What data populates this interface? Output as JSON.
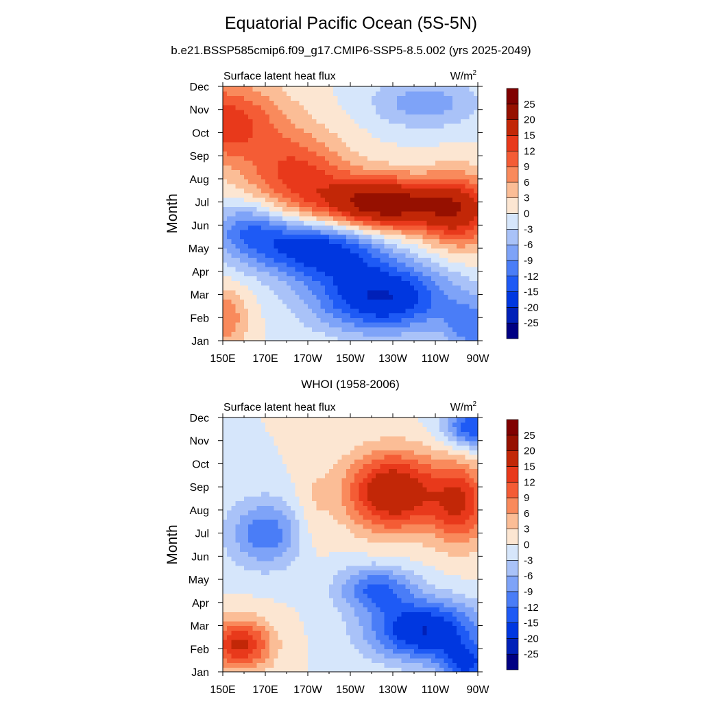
{
  "header": {
    "title": "Equatorial Pacific Ocean (5S-5N)",
    "subtitle": "b.e21.BSSP585cmip6.f09_g17.CMIP6-SSP5-8.5.002 (yrs 2025-2049)"
  },
  "palette": {
    "levels": [
      "-25",
      "-20",
      "-15",
      "-12",
      "-9",
      "-6",
      "-3",
      "0",
      "3",
      "6",
      "9",
      "12",
      "15",
      "20",
      "25"
    ],
    "level_values": [
      -25,
      -20,
      -15,
      -12,
      -9,
      -6,
      -3,
      0,
      3,
      6,
      9,
      12,
      15,
      20,
      25
    ],
    "colors": [
      "#000083",
      "#0020b8",
      "#0037e0",
      "#1e5af5",
      "#4a7df7",
      "#7ea3f8",
      "#a9c2f8",
      "#d6e6fb",
      "#fce6d2",
      "#fbbd96",
      "#f98a5c",
      "#f45c35",
      "#e8391b",
      "#c22707",
      "#961000",
      "#800000"
    ]
  },
  "chart_data": [
    {
      "type": "heatmap",
      "panel_title": "",
      "left_label": "Surface latent heat flux",
      "right_label": "W/m",
      "right_label_sup": "2",
      "ylabel": "Month",
      "x_ticks": [
        "150E",
        "170E",
        "170W",
        "150W",
        "130W",
        "110W",
        "90W"
      ],
      "x_tick_values": [
        150,
        170,
        190,
        210,
        230,
        250,
        270
      ],
      "y_ticks": [
        "Jan",
        "Feb",
        "Mar",
        "Apr",
        "May",
        "Jun",
        "Jul",
        "Aug",
        "Sep",
        "Oct",
        "Nov",
        "Dec"
      ],
      "xlim": [
        150,
        270
      ],
      "ylim": [
        1,
        12
      ],
      "features": [
        {
          "kind": "pos",
          "lon": 150,
          "month": 10.5,
          "amp": 14,
          "slon": 28,
          "smon": 1.8
        },
        {
          "kind": "pos",
          "lon": 185,
          "month": 8.2,
          "amp": 12,
          "slon": 24,
          "smon": 1.8
        },
        {
          "kind": "pos",
          "lon": 225,
          "month": 6.9,
          "amp": 24,
          "slon": 30,
          "smon": 1.2
        },
        {
          "kind": "pos",
          "lon": 262,
          "month": 6.6,
          "amp": 15,
          "slon": 18,
          "smon": 1.6
        },
        {
          "kind": "pos",
          "lon": 150,
          "month": 2,
          "amp": 9,
          "slon": 12,
          "smon": 1.3
        },
        {
          "kind": "neg",
          "lon": 195,
          "month": 5,
          "amp": -18,
          "slon": 30,
          "smon": 1.3
        },
        {
          "kind": "neg",
          "lon": 225,
          "month": 2.9,
          "amp": -20,
          "slon": 32,
          "smon": 1.5
        },
        {
          "kind": "neg",
          "lon": 162,
          "month": 5.8,
          "amp": -10,
          "slon": 18,
          "smon": 1.2
        },
        {
          "kind": "neg",
          "lon": 245,
          "month": 11.3,
          "amp": -8,
          "slon": 25,
          "smon": 1.1
        },
        {
          "kind": "neg",
          "lon": 268,
          "month": 1.6,
          "amp": -10,
          "slon": 14,
          "smon": 1.2
        }
      ]
    },
    {
      "type": "heatmap",
      "panel_title": "WHOI (1958-2006)",
      "left_label": "Surface latent heat flux",
      "right_label": "W/m",
      "right_label_sup": "2",
      "ylabel": "Month",
      "x_ticks": [
        "150E",
        "170E",
        "170W",
        "150W",
        "130W",
        "110W",
        "90W"
      ],
      "x_tick_values": [
        150,
        170,
        190,
        210,
        230,
        250,
        270
      ],
      "y_ticks": [
        "Jan",
        "Feb",
        "Mar",
        "Apr",
        "May",
        "Jun",
        "Jul",
        "Aug",
        "Sep",
        "Oct",
        "Nov",
        "Dec"
      ],
      "xlim": [
        150,
        270
      ],
      "ylim": [
        1,
        12
      ],
      "features": [
        {
          "kind": "pos",
          "lon": 230,
          "month": 8.8,
          "amp": 20,
          "slon": 22,
          "smon": 1.7
        },
        {
          "kind": "pos",
          "lon": 262,
          "month": 8.3,
          "amp": 14,
          "slon": 14,
          "smon": 1.8
        },
        {
          "kind": "pos",
          "lon": 158,
          "month": 2.2,
          "amp": 16,
          "slon": 15,
          "smon": 1.1
        },
        {
          "kind": "pos",
          "lon": 192,
          "month": 8,
          "amp": 3,
          "slon": 8,
          "smon": 2.2
        },
        {
          "kind": "neg",
          "lon": 170,
          "month": 7,
          "amp": -11,
          "slon": 18,
          "smon": 1.5
        },
        {
          "kind": "neg",
          "lon": 245,
          "month": 2.8,
          "amp": -20,
          "slon": 26,
          "smon": 1.3
        },
        {
          "kind": "neg",
          "lon": 222,
          "month": 4.6,
          "amp": -12,
          "slon": 18,
          "smon": 1.0
        },
        {
          "kind": "neg",
          "lon": 268,
          "month": 11.6,
          "amp": -15,
          "slon": 14,
          "smon": 0.9
        },
        {
          "kind": "neg",
          "lon": 265,
          "month": 1.3,
          "amp": -14,
          "slon": 12,
          "smon": 0.9
        }
      ]
    }
  ]
}
